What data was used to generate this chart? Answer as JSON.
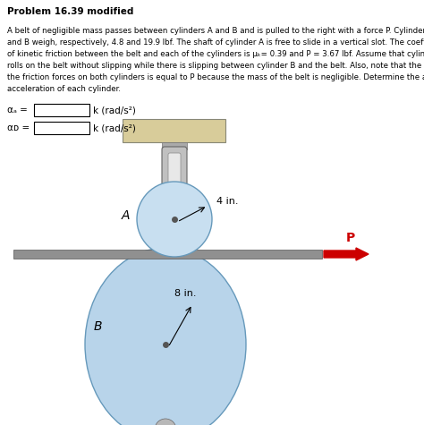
{
  "title": "Problem 16.39 modified",
  "body_text_line1": "A belt of negligible mass passes between cylinders A and B and is pulled to the right with a force P. Cylinders A",
  "body_text_line2": "and B weigh, respectively, 4.8 and 19.9 lbf. The shaft of cylinder A is free to slide in a vertical slot. The coefficients",
  "body_text_line3": "of kinetic friction between the belt and each of the cylinders is μₖ= 0.39 and P = 3.67 lbf. Assume that cylinder A",
  "body_text_line4": "rolls on the belt without slipping while there is slipping between cylinder B and the belt. Also, note that the sum of",
  "body_text_line5": "the friction forces on both cylinders is equal to P because the mass of the belt is negligible. Determine the angular",
  "body_text_line6": "acceleration of each cylinder.",
  "alpha_A_label": "αₐ =",
  "alpha_B_label": "αᴅ =",
  "units_label": "k (rad/s²)",
  "background_color": "#ffffff",
  "cylinder_A_color": "#c8dff0",
  "cylinder_B_color": "#b8d4ea",
  "belt_color": "#909090",
  "block_top_color": "#d8cc9a",
  "block_bottom_color": "#d8cc9a",
  "shaft_color": "#b0b0b0",
  "arrow_color": "#cc0000",
  "text_color": "#000000",
  "A_label": "A",
  "B_label": "B",
  "dim_A": "4 in.",
  "dim_B": "8 in.",
  "P_label": "P"
}
